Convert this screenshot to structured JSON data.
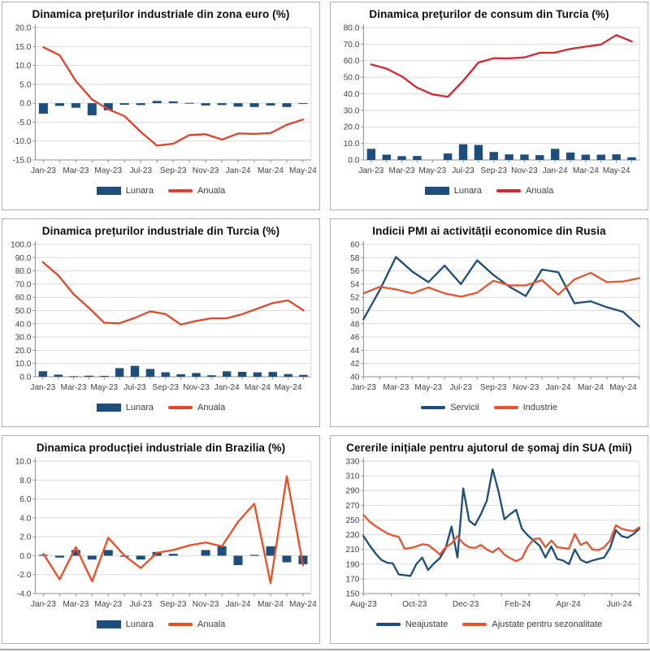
{
  "page": {
    "description": "Grid of six macroeconomic charts",
    "accent_blue": "#1f4e7c",
    "accent_red": "#d8262c",
    "accent_orange": "#e65532"
  },
  "chart_data": [
    {
      "type": "bar+line",
      "title": "Dinamica prețurilor industriale din zona euro (%)",
      "categories": [
        "Jan-23",
        "Feb-23",
        "Mar-23",
        "Apr-23",
        "May-23",
        "Jun-23",
        "Jul-23",
        "Aug-23",
        "Sep-23",
        "Oct-23",
        "Nov-23",
        "Dec-23",
        "Jan-24",
        "Feb-24",
        "Mar-24",
        "Apr-24",
        "May-24"
      ],
      "x_ticks": [
        {
          "pos": 0,
          "label": "Jan-23"
        },
        {
          "pos": 2,
          "label": "Mar-23"
        },
        {
          "pos": 4,
          "label": "May-23"
        },
        {
          "pos": 6,
          "label": "Jul-23"
        },
        {
          "pos": 8,
          "label": "Sep-23"
        },
        {
          "pos": 10,
          "label": "Nov-23"
        },
        {
          "pos": 12,
          "label": "Jan-24"
        },
        {
          "pos": 14,
          "label": "Mar-24"
        },
        {
          "pos": 16,
          "label": "May-24"
        }
      ],
      "minor_ticks": "every-category",
      "ylim": [
        -15,
        20
      ],
      "ytick_step": 5,
      "y_decimals": 1,
      "xlabel": "",
      "ylabel": "",
      "grid": true,
      "legend_position": "bottom",
      "series": [
        {
          "name": "Lunara",
          "type": "bar",
          "color": "#1f4e7c",
          "values": [
            -2.8,
            -0.7,
            -1.2,
            -3.2,
            -1.9,
            -0.4,
            -0.5,
            0.6,
            0.5,
            0.1,
            -0.6,
            -0.5,
            -0.9,
            -1.0,
            -0.6,
            -1.0,
            -0.2
          ]
        },
        {
          "name": "Anuala",
          "type": "line",
          "color": "#e2422c",
          "values": [
            14.8,
            12.7,
            5.9,
            1.0,
            -1.6,
            -3.4,
            -7.6,
            -11.2,
            -10.7,
            -8.4,
            -8.2,
            -9.6,
            -8.0,
            -8.1,
            -7.9,
            -5.7,
            -4.3
          ]
        }
      ]
    },
    {
      "type": "bar+line",
      "title": "Dinamica prețurilor de consum din Turcia (%)",
      "categories": [
        "Jan-23",
        "Feb-23",
        "Mar-23",
        "Apr-23",
        "May-23",
        "Jun-23",
        "Jul-23",
        "Aug-23",
        "Sep-23",
        "Oct-23",
        "Nov-23",
        "Dec-23",
        "Jan-24",
        "Feb-24",
        "Mar-24",
        "Apr-24",
        "May-24",
        "Jun-24"
      ],
      "x_ticks": [
        {
          "pos": 0,
          "label": "Jan-23"
        },
        {
          "pos": 2,
          "label": "Mar-23"
        },
        {
          "pos": 4,
          "label": "May-23"
        },
        {
          "pos": 6,
          "label": "Jul-23"
        },
        {
          "pos": 8,
          "label": "Sep-23"
        },
        {
          "pos": 10,
          "label": "Nov-23"
        },
        {
          "pos": 12,
          "label": "Jan-24"
        },
        {
          "pos": 14,
          "label": "Mar-24"
        },
        {
          "pos": 16,
          "label": "May-24"
        }
      ],
      "minor_ticks": "every-category",
      "ylim": [
        0,
        80
      ],
      "ytick_step": 10,
      "y_decimals": 1,
      "xlabel": "",
      "ylabel": "",
      "grid": true,
      "legend_position": "bottom",
      "series": [
        {
          "name": "Lunara",
          "type": "bar",
          "color": "#1f4e7c",
          "values": [
            6.7,
            3.2,
            2.3,
            2.4,
            0.0,
            3.9,
            9.5,
            9.1,
            4.8,
            3.4,
            3.3,
            2.9,
            6.7,
            4.5,
            3.2,
            3.2,
            3.4,
            1.6
          ]
        },
        {
          "name": "Anuala",
          "type": "line",
          "color": "#d8262c",
          "values": [
            57.7,
            55.2,
            50.5,
            43.7,
            39.6,
            38.2,
            47.8,
            58.9,
            61.5,
            61.4,
            62.0,
            64.8,
            64.9,
            67.1,
            68.5,
            69.8,
            75.5,
            71.6
          ]
        }
      ]
    },
    {
      "type": "bar+line",
      "title": "Dinamica prețurilor industriale din Turcia (%)",
      "categories": [
        "Jan-23",
        "Feb-23",
        "Mar-23",
        "Apr-23",
        "May-23",
        "Jun-23",
        "Jul-23",
        "Aug-23",
        "Sep-23",
        "Oct-23",
        "Nov-23",
        "Dec-23",
        "Jan-24",
        "Feb-24",
        "Mar-24",
        "Apr-24",
        "May-24",
        "Jun-24"
      ],
      "x_ticks": [
        {
          "pos": 0,
          "label": "Jan-23"
        },
        {
          "pos": 2,
          "label": "Mar-23"
        },
        {
          "pos": 4,
          "label": "May-23"
        },
        {
          "pos": 6,
          "label": "Jul-23"
        },
        {
          "pos": 8,
          "label": "Sep-23"
        },
        {
          "pos": 10,
          "label": "Nov-23"
        },
        {
          "pos": 12,
          "label": "Jan-24"
        },
        {
          "pos": 14,
          "label": "Mar-24"
        },
        {
          "pos": 16,
          "label": "May-24"
        }
      ],
      "minor_ticks": "every-category",
      "ylim": [
        0,
        100
      ],
      "ytick_step": 10,
      "y_decimals": 1,
      "xlabel": "",
      "ylabel": "",
      "grid": true,
      "legend_position": "bottom",
      "series": [
        {
          "name": "Lunara",
          "type": "bar",
          "color": "#1f4e7c",
          "values": [
            4.2,
            1.6,
            0.4,
            0.8,
            0.7,
            6.5,
            8.2,
            5.9,
            3.4,
            1.9,
            2.8,
            1.1,
            4.1,
            3.7,
            3.3,
            3.6,
            2.0,
            1.4
          ]
        },
        {
          "name": "Anuala",
          "type": "line",
          "color": "#e2472a",
          "values": [
            86.5,
            76.6,
            62.4,
            52.1,
            40.8,
            40.4,
            44.5,
            49.4,
            47.4,
            39.4,
            42.2,
            44.2,
            44.2,
            47.3,
            51.5,
            55.7,
            57.7,
            50.1
          ]
        }
      ]
    },
    {
      "type": "line",
      "title": "Indicii PMI ai activității economice din Rusia",
      "categories": [
        "Jan-23",
        "Feb-23",
        "Mar-23",
        "Apr-23",
        "May-23",
        "Jun-23",
        "Jul-23",
        "Aug-23",
        "Sep-23",
        "Oct-23",
        "Nov-23",
        "Dec-23",
        "Jan-24",
        "Feb-24",
        "Mar-24",
        "Apr-24",
        "May-24",
        "Jun-24"
      ],
      "x_ticks": [
        {
          "pos": 0,
          "label": "Jan-23"
        },
        {
          "pos": 2,
          "label": "Mar-23"
        },
        {
          "pos": 4,
          "label": "May-23"
        },
        {
          "pos": 6,
          "label": "Jul-23"
        },
        {
          "pos": 8,
          "label": "Sep-23"
        },
        {
          "pos": 10,
          "label": "Nov-23"
        },
        {
          "pos": 12,
          "label": "Jan-24"
        },
        {
          "pos": 14,
          "label": "Mar-24"
        },
        {
          "pos": 16,
          "label": "May-24"
        }
      ],
      "minor_ticks": "every-category",
      "ylim": [
        40,
        60
      ],
      "ytick_step": 2,
      "y_decimals": 0,
      "xlabel": "",
      "ylabel": "",
      "grid": true,
      "legend_position": "bottom",
      "series": [
        {
          "name": "Servicii",
          "type": "line",
          "color": "#1f4e7c",
          "values": [
            48.7,
            53.1,
            58.1,
            55.9,
            54.3,
            56.8,
            54.0,
            57.6,
            55.4,
            53.6,
            52.2,
            56.2,
            55.8,
            51.1,
            51.4,
            50.5,
            49.8,
            47.6
          ]
        },
        {
          "name": "Industrie",
          "type": "line",
          "color": "#e65532",
          "values": [
            52.6,
            53.6,
            53.2,
            52.6,
            53.5,
            52.6,
            52.1,
            52.7,
            54.5,
            53.8,
            53.8,
            54.6,
            52.4,
            54.7,
            55.7,
            54.3,
            54.4,
            54.9
          ]
        }
      ]
    },
    {
      "type": "bar+line",
      "title": "Dinamica producției industriale din Brazilia (%)",
      "categories": [
        "Jan-23",
        "Feb-23",
        "Mar-23",
        "Apr-23",
        "May-23",
        "Jun-23",
        "Jul-23",
        "Aug-23",
        "Sep-23",
        "Oct-23",
        "Nov-23",
        "Dec-23",
        "Jan-24",
        "Feb-24",
        "Mar-24",
        "Apr-24",
        "May-24"
      ],
      "x_ticks": [
        {
          "pos": 0,
          "label": "Jan-23"
        },
        {
          "pos": 2,
          "label": "Mar-23"
        },
        {
          "pos": 4,
          "label": "May-23"
        },
        {
          "pos": 6,
          "label": "Jul-23"
        },
        {
          "pos": 8,
          "label": "Sep-23"
        },
        {
          "pos": 10,
          "label": "Nov-23"
        },
        {
          "pos": 12,
          "label": "Jan-24"
        },
        {
          "pos": 14,
          "label": "Mar-24"
        },
        {
          "pos": 16,
          "label": "May-24"
        }
      ],
      "minor_ticks": "every-category",
      "ylim": [
        -4,
        10
      ],
      "ytick_step": 2,
      "y_decimals": 1,
      "xlabel": "",
      "ylabel": "",
      "grid": true,
      "legend_position": "bottom",
      "series": [
        {
          "name": "Lunara",
          "type": "bar",
          "color": "#1f4e7c",
          "values": [
            0.1,
            -0.2,
            0.6,
            -0.4,
            0.6,
            -0.1,
            -0.4,
            0.4,
            0.2,
            0.0,
            0.6,
            1.0,
            -1.0,
            0.1,
            1.0,
            -0.7,
            -0.9
          ]
        },
        {
          "name": "Anuala",
          "type": "line",
          "color": "#ee4d24",
          "values": [
            0.2,
            -2.5,
            0.9,
            -2.7,
            1.9,
            0.0,
            -1.3,
            0.3,
            0.6,
            1.1,
            1.4,
            1.0,
            3.6,
            5.5,
            -2.9,
            8.4,
            -1.0
          ]
        }
      ]
    },
    {
      "type": "line",
      "title": "Cererile inițiale pentru ajutorul de șomaj din SUA (mii)",
      "x_unit": "week",
      "x_ticks": [
        {
          "pos": 0,
          "label": "Aug-23"
        },
        {
          "pos": 8.7,
          "label": "Oct-23"
        },
        {
          "pos": 17.4,
          "label": "Dec-23"
        },
        {
          "pos": 26.3,
          "label": "Feb-24"
        },
        {
          "pos": 34.9,
          "label": "Apr-24"
        },
        {
          "pos": 43.6,
          "label": "Jun-24"
        }
      ],
      "minor_ticks": [
        0,
        4.7,
        9.4,
        14.1,
        18.8,
        23.5,
        28.2,
        32.9,
        37.6,
        42.3,
        47
      ],
      "ylim": [
        150,
        330
      ],
      "ytick_step": 20,
      "y_decimals": 0,
      "xlabel": "",
      "ylabel": "",
      "grid": true,
      "legend_position": "bottom",
      "series": [
        {
          "name": "Neajustate",
          "type": "line",
          "color": "#1f4e7c",
          "values": [
            228,
            216,
            205,
            196,
            192,
            191,
            176,
            175,
            174,
            190,
            199,
            182,
            191,
            198,
            212,
            241,
            199,
            293,
            249,
            243,
            258,
            276,
            319,
            289,
            251,
            258,
            264,
            238,
            229,
            222,
            215,
            199,
            214,
            197,
            195,
            190,
            210,
            196,
            192,
            195,
            197,
            199,
            212,
            236,
            228,
            226,
            231,
            238
          ]
        },
        {
          "name": "Ajustate pentru sezonalitate",
          "type": "line",
          "color": "#e65532",
          "values": [
            257,
            248,
            242,
            237,
            232,
            229,
            227,
            211,
            212,
            214,
            217,
            216,
            210,
            203,
            213,
            218,
            228,
            218,
            213,
            212,
            216,
            210,
            206,
            212,
            203,
            198,
            194,
            198,
            214,
            224,
            225,
            213,
            222,
            213,
            212,
            211,
            231,
            216,
            220,
            210,
            209,
            213,
            222,
            243,
            238,
            236,
            235,
            240
          ]
        }
      ]
    }
  ]
}
